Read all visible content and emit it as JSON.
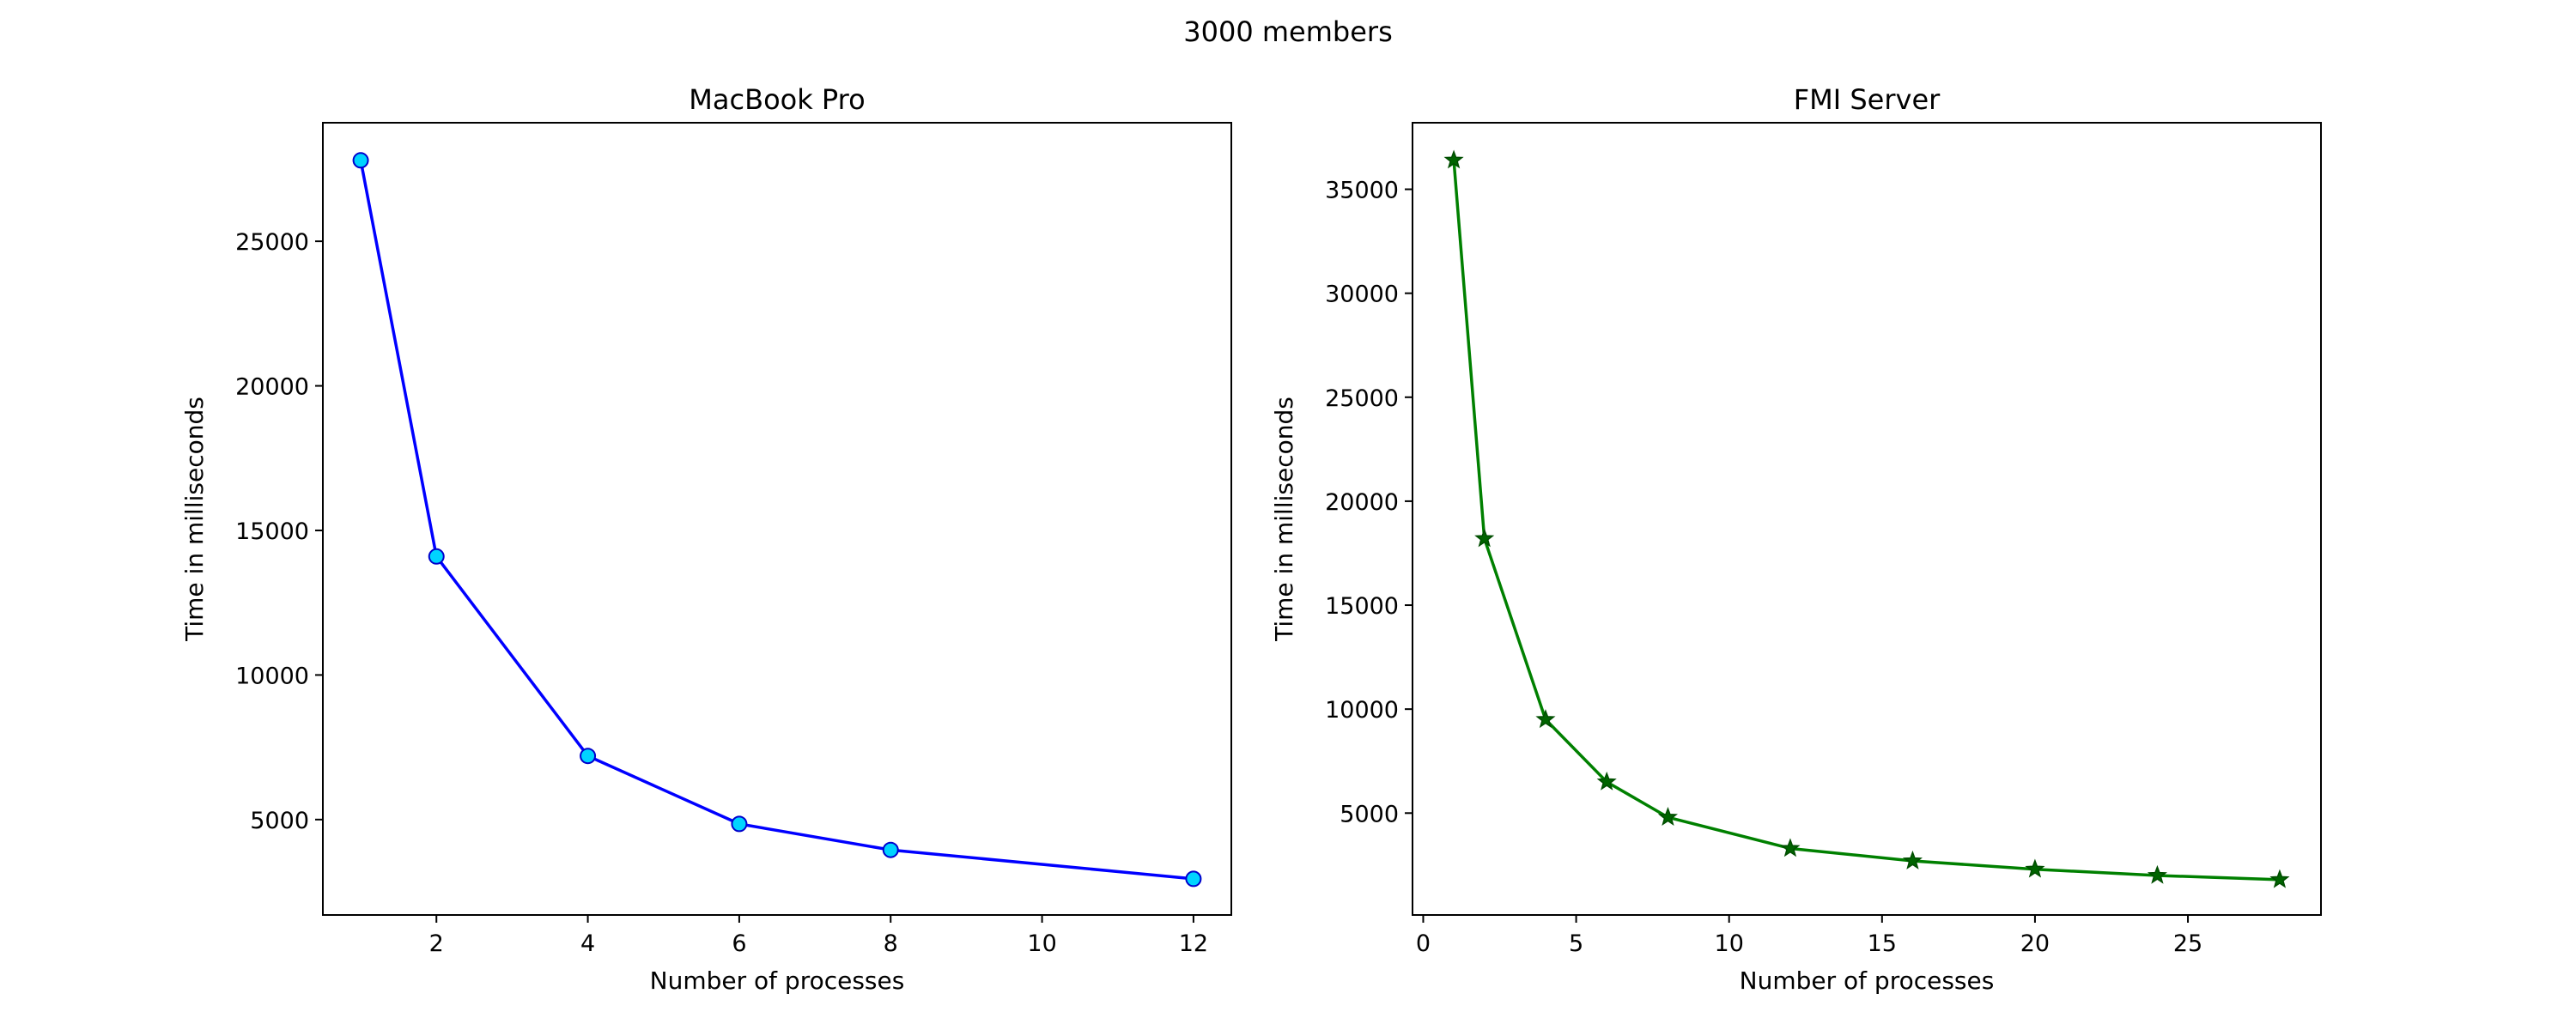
{
  "figure": {
    "suptitle": "3000 members"
  },
  "chart_data": [
    {
      "type": "line",
      "title": "MacBook Pro",
      "xlabel": "Number of processes",
      "ylabel": "Time in milliseconds",
      "xlim": [
        0.5,
        12.5
      ],
      "ylim": [
        1700,
        29100
      ],
      "xticks": [
        2,
        4,
        6,
        8,
        10,
        12
      ],
      "yticks": [
        5000,
        10000,
        15000,
        20000,
        25000
      ],
      "grid": false,
      "legend": "none",
      "marker": "circle",
      "line_color": "#0000ff",
      "marker_face": "#00d4ff",
      "marker_edge": "#0000cc",
      "series": [
        {
          "x": [
            1,
            2,
            4,
            6,
            8,
            12
          ],
          "y": [
            27800,
            14100,
            7200,
            4850,
            3950,
            2950
          ]
        }
      ]
    },
    {
      "type": "line",
      "title": "FMI Server",
      "xlabel": "Number of processes",
      "ylabel": "Time in milliseconds",
      "xlim": [
        -0.35,
        29.35
      ],
      "ylim": [
        100,
        38200
      ],
      "xticks": [
        0,
        5,
        10,
        15,
        20,
        25
      ],
      "yticks": [
        5000,
        10000,
        15000,
        20000,
        25000,
        30000,
        35000
      ],
      "grid": false,
      "legend": "none",
      "marker": "star",
      "line_color": "#008000",
      "marker_face": "#006400",
      "marker_edge": "#004d00",
      "series": [
        {
          "x": [
            1,
            2,
            4,
            6,
            8,
            12,
            16,
            20,
            24,
            28
          ],
          "y": [
            36400,
            18200,
            9500,
            6500,
            4800,
            3300,
            2700,
            2300,
            2000,
            1800
          ]
        }
      ]
    }
  ]
}
